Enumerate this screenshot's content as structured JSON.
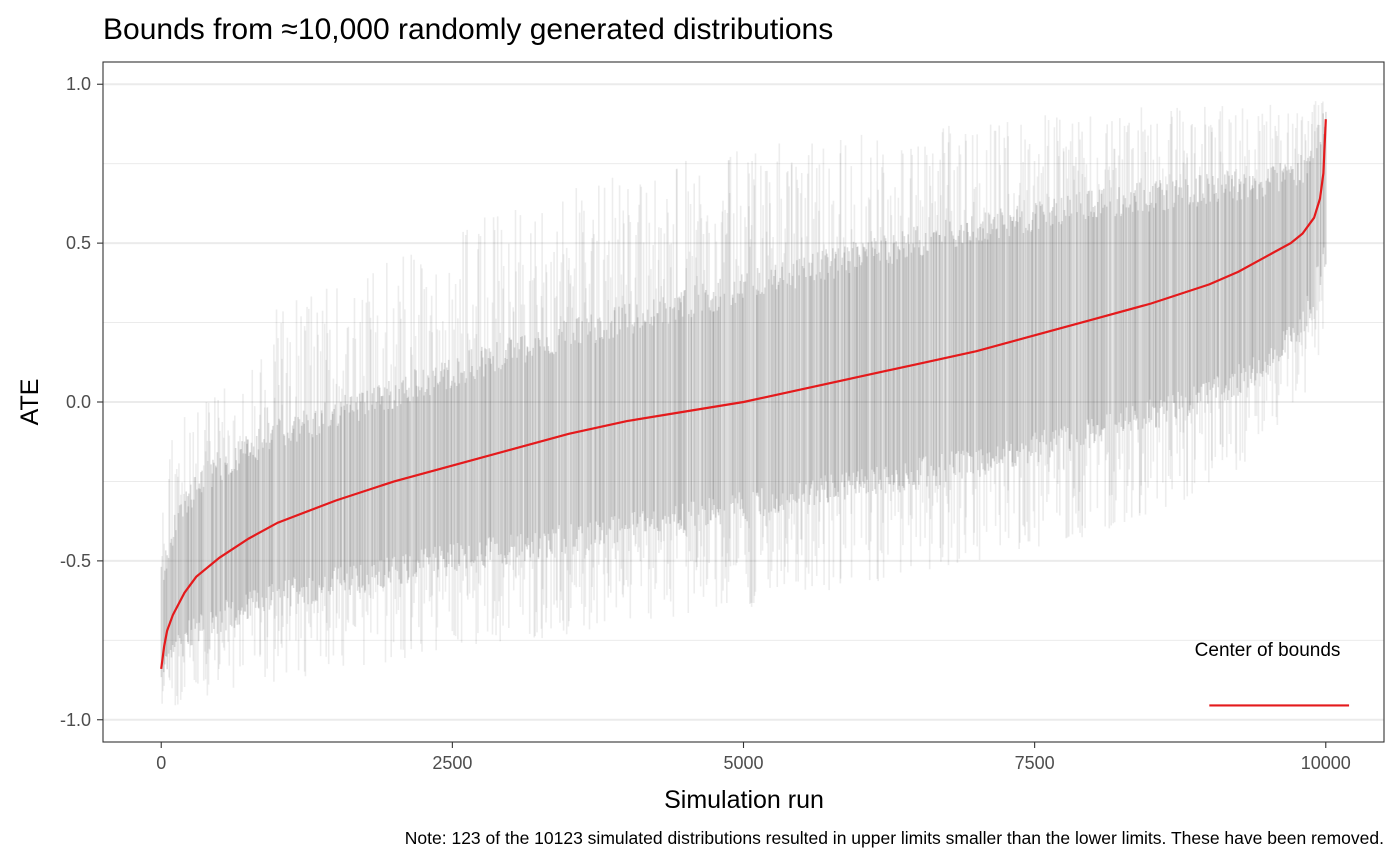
{
  "chart_data": {
    "type": "line",
    "title": "Bounds from ≈10,000 randomly generated distributions",
    "xlabel": "Simulation run",
    "ylabel": "ATE",
    "caption": "Note: 123 of the 10123 simulated distributions resulted in upper limits smaller than the lower limits. These have been removed.",
    "xlim": [
      -500,
      10500
    ],
    "ylim": [
      -1.07,
      1.07
    ],
    "x_ticks": [
      0,
      2500,
      5000,
      7500,
      10000
    ],
    "x_tick_labels": [
      "0",
      "2500",
      "5000",
      "7500",
      "10000"
    ],
    "y_ticks": [
      1.0,
      0.5,
      0.0,
      -0.5,
      -1.0
    ],
    "y_tick_labels": [
      "1.0",
      "0.5",
      "0.0",
      "-0.5",
      "-1.0"
    ],
    "y_minor_ticks": [
      0.75,
      0.25,
      -0.25,
      -0.75
    ],
    "grid": true,
    "legend_position": "bottom-right",
    "series": [
      {
        "name": "Center of bounds",
        "color": "#e41a1c",
        "x": [
          0,
          25,
          50,
          100,
          200,
          300,
          500,
          750,
          1000,
          1500,
          2000,
          2500,
          3000,
          3500,
          4000,
          4500,
          5000,
          5500,
          6000,
          6500,
          7000,
          7500,
          8000,
          8500,
          9000,
          9250,
          9500,
          9700,
          9800,
          9900,
          9950,
          9980,
          10000
        ],
        "y": [
          -0.84,
          -0.77,
          -0.72,
          -0.67,
          -0.6,
          -0.55,
          -0.49,
          -0.43,
          -0.38,
          -0.31,
          -0.25,
          -0.2,
          -0.15,
          -0.1,
          -0.06,
          -0.03,
          0.0,
          0.04,
          0.08,
          0.12,
          0.16,
          0.21,
          0.26,
          0.31,
          0.37,
          0.41,
          0.46,
          0.5,
          0.53,
          0.58,
          0.64,
          0.72,
          0.89
        ]
      }
    ],
    "bounds_band": {
      "color": "#333333",
      "x": [
        0,
        100,
        250,
        500,
        1000,
        2000,
        3000,
        4000,
        5000,
        6000,
        7000,
        8000,
        9000,
        9500,
        9800,
        10000
      ],
      "dense_lower": [
        -0.9,
        -0.8,
        -0.75,
        -0.7,
        -0.63,
        -0.55,
        -0.48,
        -0.42,
        -0.35,
        -0.28,
        -0.21,
        -0.12,
        0.0,
        0.1,
        0.22,
        0.45
      ],
      "dense_upper": [
        -0.55,
        -0.38,
        -0.28,
        -0.18,
        -0.08,
        0.05,
        0.18,
        0.28,
        0.38,
        0.48,
        0.57,
        0.64,
        0.69,
        0.71,
        0.75,
        0.9
      ],
      "outer_lower": [
        -0.96,
        -0.96,
        -0.94,
        -0.92,
        -0.88,
        -0.82,
        -0.76,
        -0.7,
        -0.65,
        -0.58,
        -0.5,
        -0.42,
        -0.28,
        -0.15,
        0.0,
        0.2
      ],
      "outer_upper": [
        -0.3,
        -0.1,
        -0.02,
        0.05,
        0.3,
        0.45,
        0.62,
        0.72,
        0.8,
        0.85,
        0.88,
        0.92,
        0.94,
        0.95,
        0.95,
        0.95
      ]
    }
  }
}
